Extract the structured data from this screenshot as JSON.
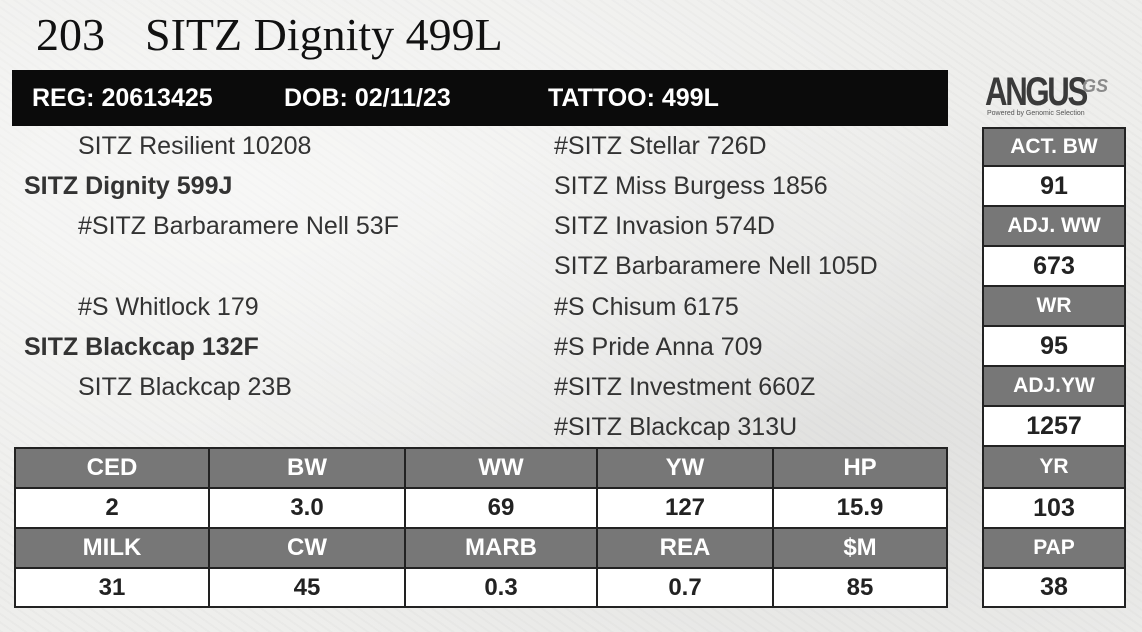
{
  "header": {
    "lot_number": "203",
    "name": "SITZ Dignity 499L"
  },
  "reg_bar": {
    "reg": "REG: 20613425",
    "dob": "DOB: 02/11/23",
    "tattoo": "TATTOO: 499L"
  },
  "logo": {
    "word": "ANGUS",
    "suffix": "GS",
    "tagline": "Powered by Genomic Selection"
  },
  "pedigree": {
    "sire_sire": "SITZ Resilient 10208",
    "sire": "SITZ Dignity 599J",
    "sire_dam": "#SITZ Barbaramere Nell 53F",
    "dam_sire": "#S Whitlock 179",
    "dam": "SITZ Blackcap 132F",
    "dam_dam": "SITZ Blackcap 23B",
    "right": [
      "#SITZ Stellar 726D",
      "SITZ Miss Burgess 1856",
      "SITZ Invasion 574D",
      "SITZ Barbaramere Nell 105D",
      "#S Chisum 6175",
      "#S Pride Anna 709",
      "#SITZ Investment 660Z",
      "#SITZ Blackcap 313U"
    ]
  },
  "epds": {
    "row1_heads": [
      "CED",
      "BW",
      "WW",
      "YW",
      "HP"
    ],
    "row1_vals": [
      "2",
      "3.0",
      "69",
      "127",
      "15.9"
    ],
    "row2_heads": [
      "MILK",
      "CW",
      "MARB",
      "REA",
      "$M"
    ],
    "row2_vals": [
      "31",
      "45",
      "0.3",
      "0.7",
      "85"
    ]
  },
  "performance": [
    {
      "label": "ACT. BW",
      "value": "91"
    },
    {
      "label": "ADJ. WW",
      "value": "673"
    },
    {
      "label": "WR",
      "value": "95"
    },
    {
      "label": "ADJ.YW",
      "value": "1257"
    },
    {
      "label": "YR",
      "value": "103"
    },
    {
      "label": "PAP",
      "value": "38"
    }
  ]
}
